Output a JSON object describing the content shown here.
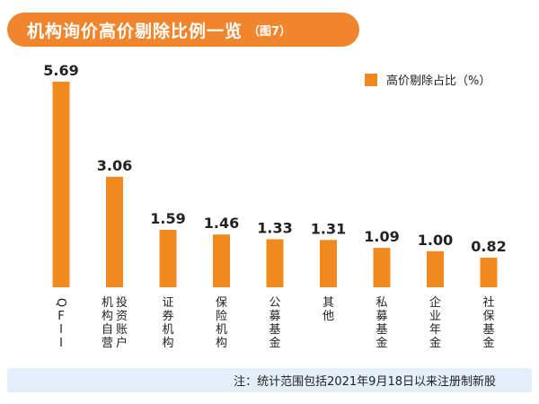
{
  "title": "机构询价高价剔除比例一览",
  "title_tag": "（图7）",
  "legend_label": "高价剔除占比（%）",
  "note": "注：统计范围包括2021年9月18日以来注册制新股",
  "colors": {
    "bar": "#f0891e",
    "title_bg": "#f0852d",
    "note_bg": "#e4eef8"
  },
  "chart_data": {
    "type": "bar",
    "categories": [
      "QFII",
      "机投构资自账营户",
      "证券机构",
      "保险机构",
      "公募基金",
      "其他",
      "私募基金",
      "企业年金",
      "社保基金"
    ],
    "series": [
      {
        "name": "高价剔除占比（%）",
        "values": [
          5.69,
          3.06,
          1.59,
          1.46,
          1.33,
          1.31,
          1.09,
          1.0,
          0.82
        ]
      }
    ],
    "value_labels": [
      "5.69",
      "3.06",
      "1.59",
      "1.46",
      "1.33",
      "1.31",
      "1.09",
      "1.00",
      "0.82"
    ],
    "category_label_columns": [
      [
        "QFII"
      ],
      [
        "机构自营",
        "投资账户"
      ],
      [
        "证券机构"
      ],
      [
        "保险机构"
      ],
      [
        "公募基金"
      ],
      [
        "其他"
      ],
      [
        "私募基金"
      ],
      [
        "企业年金"
      ],
      [
        "社保基金"
      ]
    ],
    "ylim": [
      0,
      5.69
    ],
    "grid": false,
    "legend_position": "top-right"
  }
}
